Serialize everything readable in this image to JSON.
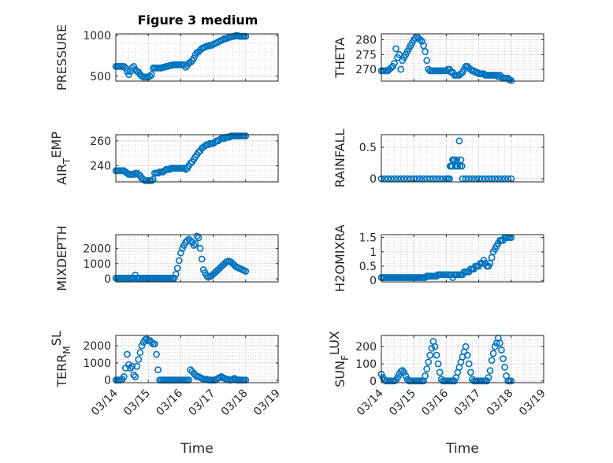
{
  "figure": {
    "title": "Figure 3 medium",
    "x_tick_labels": [
      "03/14",
      "03/15",
      "03/16",
      "03/17",
      "03/18",
      "03/19"
    ],
    "xlabel": "Time"
  },
  "chart_data": [
    {
      "type": "scatter",
      "name": "PRESSURE",
      "ylabel_base": "PRESSURE",
      "ylabel_sub": "",
      "ylabel_sup": "",
      "ylim": [
        440,
        1020
      ],
      "yticks": [
        500,
        1000
      ],
      "xlim": [
        0,
        5
      ],
      "color": "#0072BD",
      "x": [
        0,
        0.05,
        0.1,
        0.15,
        0.2,
        0.25,
        0.3,
        0.35,
        0.4,
        0.45,
        0.5,
        0.55,
        0.6,
        0.65,
        0.7,
        0.75,
        0.8,
        0.85,
        0.9,
        0.95,
        1.0,
        1.05,
        1.1,
        1.15,
        1.2,
        1.25,
        1.3,
        1.35,
        1.4,
        1.45,
        1.5,
        1.55,
        1.6,
        1.65,
        1.7,
        1.75,
        1.8,
        1.85,
        1.9,
        1.95,
        2.0,
        2.05,
        2.1,
        2.15,
        2.2,
        2.25,
        2.3,
        2.35,
        2.4,
        2.45,
        2.5,
        2.55,
        2.6,
        2.65,
        2.7,
        2.75,
        2.8,
        2.85,
        2.9,
        2.95,
        3.0,
        3.05,
        3.1,
        3.15,
        3.2,
        3.25,
        3.3,
        3.35,
        3.4,
        3.45,
        3.5,
        3.55,
        3.6,
        3.65,
        3.7,
        3.75,
        3.8,
        3.85,
        3.9,
        3.95,
        4.0
      ],
      "y": [
        620,
        620,
        620,
        620,
        620,
        620,
        600,
        560,
        520,
        560,
        600,
        620,
        580,
        560,
        550,
        520,
        500,
        490,
        490,
        490,
        490,
        500,
        520,
        600,
        600,
        600,
        600,
        600,
        600,
        610,
        610,
        620,
        620,
        630,
        630,
        640,
        640,
        640,
        640,
        640,
        640,
        640,
        640,
        610,
        630,
        660,
        670,
        690,
        720,
        760,
        790,
        800,
        820,
        840,
        850,
        860,
        870,
        870,
        880,
        880,
        890,
        900,
        910,
        920,
        930,
        940,
        950,
        960,
        960,
        970,
        980,
        980,
        990,
        990,
        1000,
        1000,
        990,
        990,
        990,
        990,
        990
      ],
      "x_tick_labels_ref": true
    },
    {
      "type": "scatter",
      "name": "THETA",
      "ylabel_base": "THETA",
      "ylabel_sub": "",
      "ylabel_sup": "",
      "ylim": [
        266,
        282
      ],
      "yticks": [
        270,
        275,
        280
      ],
      "xlim": [
        0,
        5
      ],
      "color": "#0072BD",
      "x": [
        0,
        0.05,
        0.1,
        0.15,
        0.2,
        0.25,
        0.3,
        0.35,
        0.4,
        0.45,
        0.5,
        0.55,
        0.6,
        0.65,
        0.7,
        0.75,
        0.8,
        0.85,
        0.9,
        0.95,
        1.0,
        1.05,
        1.1,
        1.15,
        1.2,
        1.25,
        1.3,
        1.35,
        1.4,
        1.45,
        1.5,
        1.55,
        1.6,
        1.65,
        1.7,
        1.75,
        1.8,
        1.85,
        1.9,
        1.95,
        2.0,
        2.05,
        2.1,
        2.15,
        2.2,
        2.25,
        2.3,
        2.35,
        2.4,
        2.45,
        2.5,
        2.55,
        2.6,
        2.65,
        2.7,
        2.75,
        2.8,
        2.85,
        2.9,
        2.95,
        3.0,
        3.05,
        3.1,
        3.15,
        3.2,
        3.25,
        3.3,
        3.35,
        3.4,
        3.45,
        3.5,
        3.55,
        3.6,
        3.65,
        3.7,
        3.75,
        3.8,
        3.85,
        3.9,
        3.95,
        4.0
      ],
      "y": [
        269.5,
        269.5,
        269.5,
        269.5,
        269.5,
        270,
        270.5,
        271,
        272,
        277,
        274,
        275,
        270,
        273,
        274,
        275,
        276,
        277,
        278,
        279,
        280,
        280.5,
        281,
        280.5,
        280,
        279.5,
        278,
        276,
        273,
        270,
        269.5,
        269.5,
        269.5,
        269.5,
        269.5,
        269.5,
        269.5,
        269.5,
        269.5,
        269.5,
        269.5,
        270,
        270,
        269,
        269,
        268,
        268,
        268,
        268,
        268.5,
        269,
        270,
        271,
        271,
        270.5,
        270,
        269.5,
        269.5,
        269,
        269,
        268.5,
        268.5,
        268.5,
        268.5,
        268,
        268,
        268,
        268,
        268,
        268,
        268,
        268,
        267.5,
        268,
        267.5,
        267,
        267,
        267,
        267,
        266.5,
        266.2
      ]
    },
    {
      "type": "scatter",
      "name": "AIR_TEMP",
      "ylabel_base": "AIR",
      "ylabel_sub": "T",
      "ylabel_sup": "EMP",
      "ylim": [
        227,
        265
      ],
      "yticks": [
        240,
        260
      ],
      "xlim": [
        0,
        5
      ],
      "color": "#0072BD",
      "x": [
        0,
        0.05,
        0.1,
        0.15,
        0.2,
        0.25,
        0.3,
        0.35,
        0.4,
        0.45,
        0.5,
        0.55,
        0.6,
        0.65,
        0.7,
        0.75,
        0.8,
        0.85,
        0.9,
        0.95,
        1.0,
        1.05,
        1.1,
        1.15,
        1.2,
        1.25,
        1.3,
        1.35,
        1.4,
        1.45,
        1.5,
        1.55,
        1.6,
        1.65,
        1.7,
        1.75,
        1.8,
        1.85,
        1.9,
        1.95,
        2.0,
        2.05,
        2.1,
        2.15,
        2.2,
        2.25,
        2.3,
        2.35,
        2.4,
        2.45,
        2.5,
        2.55,
        2.6,
        2.65,
        2.7,
        2.75,
        2.8,
        2.85,
        2.9,
        2.95,
        3.0,
        3.05,
        3.1,
        3.15,
        3.2,
        3.25,
        3.3,
        3.35,
        3.4,
        3.45,
        3.5,
        3.55,
        3.6,
        3.65,
        3.7,
        3.75,
        3.8,
        3.85,
        3.9,
        3.95,
        4.0
      ],
      "y": [
        236,
        236,
        236,
        236,
        236,
        236,
        235,
        234,
        233,
        233,
        233,
        233,
        234,
        234,
        233,
        232,
        230,
        229,
        228,
        228,
        228,
        228,
        228,
        229,
        234,
        234,
        234,
        235,
        235,
        235,
        236,
        237,
        237,
        237,
        238,
        238,
        238,
        238,
        238,
        238,
        238,
        238,
        238,
        237,
        238,
        240,
        242,
        243,
        245,
        247,
        249,
        251,
        252,
        254,
        255,
        256,
        257,
        257,
        258,
        258,
        258,
        259,
        260,
        260,
        261,
        262,
        262,
        262,
        263,
        263,
        263,
        264,
        264,
        264,
        264,
        264,
        264,
        264,
        264,
        264,
        264
      ]
    },
    {
      "type": "scatter",
      "name": "RAINFALL",
      "ylabel_base": "RAINFALL",
      "ylabel_sub": "",
      "ylabel_sup": "",
      "ylim": [
        -0.05,
        0.7
      ],
      "yticks": [
        0,
        0.5
      ],
      "xlim": [
        0,
        5
      ],
      "color": "#0072BD",
      "x": [
        0,
        0.1,
        0.2,
        0.3,
        0.4,
        0.5,
        0.6,
        0.7,
        0.8,
        0.9,
        1.0,
        1.1,
        1.2,
        1.3,
        1.4,
        1.5,
        1.6,
        1.7,
        1.8,
        1.9,
        2.0,
        2.05,
        2.1,
        2.12,
        2.15,
        2.18,
        2.2,
        2.22,
        2.25,
        2.28,
        2.3,
        2.32,
        2.35,
        2.4,
        2.42,
        2.45,
        2.48,
        2.5,
        2.6,
        2.7,
        2.8,
        2.9,
        3.0,
        3.1,
        3.2,
        3.3,
        3.4,
        3.5,
        3.6,
        3.7,
        3.8,
        3.9,
        4.0
      ],
      "y": [
        0,
        0,
        0,
        0,
        0,
        0,
        0,
        0,
        0,
        0,
        0,
        0,
        0,
        0,
        0,
        0,
        0,
        0,
        0,
        0,
        0,
        0,
        0,
        0.2,
        0.2,
        0.2,
        0.3,
        0.3,
        0.3,
        0.2,
        0.2,
        0.3,
        0.2,
        0.6,
        0.2,
        0.3,
        0.2,
        0,
        0,
        0,
        0,
        0,
        0,
        0,
        0,
        0,
        0,
        0,
        0,
        0,
        0,
        0,
        0
      ]
    },
    {
      "type": "scatter",
      "name": "MIXDEPTH",
      "ylabel_base": "MIXDEPTH",
      "ylabel_sub": "",
      "ylabel_sup": "",
      "ylim": [
        -200,
        2900
      ],
      "yticks": [
        0,
        1000,
        2000
      ],
      "xlim": [
        0,
        5
      ],
      "color": "#0072BD",
      "x": [
        0,
        0.05,
        0.1,
        0.15,
        0.2,
        0.25,
        0.3,
        0.35,
        0.4,
        0.45,
        0.5,
        0.55,
        0.6,
        0.65,
        0.7,
        0.75,
        0.8,
        0.85,
        0.9,
        0.95,
        1.0,
        1.05,
        1.1,
        1.15,
        1.2,
        1.25,
        1.3,
        1.35,
        1.4,
        1.45,
        1.5,
        1.55,
        1.6,
        1.65,
        1.7,
        1.75,
        1.8,
        1.85,
        1.9,
        1.95,
        2.0,
        2.05,
        2.1,
        2.15,
        2.2,
        2.25,
        2.3,
        2.35,
        2.4,
        2.45,
        2.5,
        2.55,
        2.6,
        2.65,
        2.7,
        2.75,
        2.8,
        2.85,
        2.9,
        2.95,
        3.0,
        3.05,
        3.1,
        3.15,
        3.2,
        3.25,
        3.3,
        3.35,
        3.4,
        3.45,
        3.5,
        3.55,
        3.6,
        3.65,
        3.7,
        3.75,
        3.8,
        3.85,
        3.9,
        3.95,
        4.0
      ],
      "y": [
        50,
        50,
        50,
        50,
        50,
        50,
        50,
        50,
        50,
        50,
        50,
        50,
        250,
        50,
        50,
        50,
        50,
        50,
        50,
        50,
        50,
        50,
        50,
        50,
        50,
        50,
        50,
        50,
        50,
        50,
        50,
        50,
        50,
        50,
        50,
        50,
        50,
        300,
        700,
        1200,
        1700,
        2000,
        2200,
        2400,
        2500,
        2600,
        2500,
        2400,
        2200,
        2300,
        2800,
        2700,
        2000,
        1300,
        600,
        400,
        200,
        100,
        150,
        200,
        300,
        400,
        500,
        600,
        700,
        800,
        900,
        1000,
        1100,
        1150,
        1150,
        1100,
        1000,
        900,
        800,
        750,
        700,
        650,
        600,
        550,
        500
      ]
    },
    {
      "type": "scatter",
      "name": "H2OMIXRA",
      "ylabel_base": "H2OMIXRA",
      "ylabel_sub": "",
      "ylabel_sup": "",
      "ylim": [
        -0.05,
        1.6
      ],
      "yticks": [
        0,
        0.5,
        1,
        1.5
      ],
      "xlim": [
        0,
        5
      ],
      "color": "#0072BD",
      "x": [
        0,
        0.05,
        0.1,
        0.15,
        0.2,
        0.25,
        0.3,
        0.35,
        0.4,
        0.45,
        0.5,
        0.55,
        0.6,
        0.65,
        0.7,
        0.75,
        0.8,
        0.85,
        0.9,
        0.95,
        1.0,
        1.05,
        1.1,
        1.15,
        1.2,
        1.25,
        1.3,
        1.35,
        1.4,
        1.45,
        1.5,
        1.55,
        1.6,
        1.65,
        1.7,
        1.75,
        1.8,
        1.85,
        1.9,
        1.95,
        2.0,
        2.05,
        2.1,
        2.15,
        2.2,
        2.25,
        2.3,
        2.35,
        2.4,
        2.45,
        2.5,
        2.55,
        2.6,
        2.65,
        2.7,
        2.75,
        2.8,
        2.85,
        2.9,
        2.95,
        3.0,
        3.05,
        3.1,
        3.15,
        3.2,
        3.25,
        3.3,
        3.35,
        3.4,
        3.45,
        3.5,
        3.55,
        3.6,
        3.65,
        3.7,
        3.75,
        3.8,
        3.85,
        3.9,
        3.95,
        4.0
      ],
      "y": [
        0.1,
        0.1,
        0.1,
        0.1,
        0.1,
        0.1,
        0.1,
        0.1,
        0.1,
        0.1,
        0.1,
        0.1,
        0.1,
        0.1,
        0.1,
        0.1,
        0.1,
        0.1,
        0.1,
        0.1,
        0.1,
        0.1,
        0.1,
        0.1,
        0.1,
        0.1,
        0.1,
        0.1,
        0.15,
        0.15,
        0.15,
        0.15,
        0.15,
        0.15,
        0.15,
        0.2,
        0.2,
        0.2,
        0.2,
        0.2,
        0.2,
        0.2,
        0.2,
        0.2,
        0.1,
        0.2,
        0.2,
        0.2,
        0.2,
        0.2,
        0.2,
        0.3,
        0.3,
        0.3,
        0.3,
        0.4,
        0.4,
        0.4,
        0.5,
        0.5,
        0.5,
        0.6,
        0.6,
        0.7,
        0.6,
        0.5,
        0.5,
        0.6,
        0.8,
        1.0,
        1.1,
        1.2,
        1.3,
        1.4,
        1.4,
        1.4,
        1.5,
        1.5,
        1.5,
        1.5,
        1.5
      ]
    },
    {
      "type": "scatter",
      "name": "TERR_MSL",
      "ylabel_base": "TERR",
      "ylabel_sub": "M",
      "ylabel_sup": "SL",
      "ylim": [
        -150,
        2600
      ],
      "yticks": [
        0,
        1000,
        2000
      ],
      "xlim": [
        0,
        5
      ],
      "color": "#0072BD",
      "x": [
        0,
        0.05,
        0.1,
        0.15,
        0.2,
        0.25,
        0.3,
        0.35,
        0.4,
        0.45,
        0.5,
        0.55,
        0.6,
        0.65,
        0.7,
        0.75,
        0.8,
        0.85,
        0.9,
        0.95,
        1.0,
        1.05,
        1.1,
        1.15,
        1.2,
        1.25,
        1.3,
        1.35,
        1.4,
        1.45,
        1.5,
        1.55,
        1.6,
        1.65,
        1.7,
        1.75,
        1.8,
        1.85,
        1.9,
        1.95,
        2.0,
        2.05,
        2.1,
        2.15,
        2.2,
        2.25,
        2.3,
        2.35,
        2.4,
        2.45,
        2.5,
        2.55,
        2.6,
        2.65,
        2.7,
        2.75,
        2.8,
        2.85,
        2.9,
        2.95,
        3.0,
        3.05,
        3.1,
        3.15,
        3.2,
        3.25,
        3.3,
        3.35,
        3.4,
        3.45,
        3.5,
        3.55,
        3.6,
        3.65,
        3.7,
        3.75,
        3.8,
        3.85,
        3.9,
        3.95,
        4.0
      ],
      "y": [
        0,
        0,
        0,
        0,
        50,
        200,
        700,
        1500,
        900,
        700,
        800,
        300,
        200,
        800,
        1200,
        1600,
        2000,
        2200,
        2350,
        2400,
        2300,
        2300,
        2200,
        2100,
        2100,
        1500,
        600,
        0,
        0,
        0,
        0,
        0,
        0,
        0,
        0,
        0,
        0,
        0,
        0,
        0,
        0,
        0,
        0,
        0,
        0,
        0,
        600,
        500,
        400,
        300,
        200,
        200,
        150,
        100,
        50,
        50,
        50,
        0,
        0,
        0,
        0,
        0,
        50,
        100,
        150,
        200,
        150,
        100,
        50,
        50,
        0,
        0,
        50,
        100,
        50,
        0,
        0,
        0,
        0,
        0,
        0
      ]
    },
    {
      "type": "scatter",
      "name": "SUN_FLUX",
      "ylabel_base": "SUN",
      "ylabel_sub": "F",
      "ylabel_sup": "LUX",
      "ylim": [
        -10,
        265
      ],
      "yticks": [
        0,
        100,
        200
      ],
      "xlim": [
        0,
        5
      ],
      "color": "#0072BD",
      "x": [
        0,
        0.05,
        0.1,
        0.15,
        0.2,
        0.25,
        0.3,
        0.35,
        0.4,
        0.45,
        0.5,
        0.55,
        0.6,
        0.65,
        0.7,
        0.75,
        0.8,
        0.85,
        0.9,
        0.95,
        1.0,
        1.05,
        1.1,
        1.15,
        1.2,
        1.25,
        1.3,
        1.35,
        1.4,
        1.45,
        1.5,
        1.55,
        1.6,
        1.65,
        1.7,
        1.75,
        1.8,
        1.85,
        1.9,
        1.95,
        2.0,
        2.05,
        2.1,
        2.15,
        2.2,
        2.25,
        2.3,
        2.35,
        2.4,
        2.45,
        2.5,
        2.55,
        2.6,
        2.65,
        2.7,
        2.75,
        2.8,
        2.85,
        2.9,
        2.95,
        3.0,
        3.05,
        3.1,
        3.15,
        3.2,
        3.25,
        3.3,
        3.35,
        3.4,
        3.45,
        3.5,
        3.55,
        3.6,
        3.65,
        3.7,
        3.75,
        3.8,
        3.85,
        3.9,
        3.95,
        4.0
      ],
      "y": [
        40,
        20,
        5,
        0,
        0,
        0,
        0,
        0,
        0,
        5,
        20,
        40,
        55,
        60,
        50,
        30,
        10,
        0,
        0,
        0,
        0,
        0,
        0,
        0,
        0,
        0,
        0,
        30,
        70,
        110,
        150,
        190,
        230,
        200,
        150,
        100,
        50,
        10,
        0,
        0,
        0,
        0,
        0,
        0,
        0,
        0,
        20,
        50,
        80,
        110,
        140,
        170,
        200,
        150,
        100,
        50,
        10,
        0,
        0,
        0,
        0,
        0,
        0,
        0,
        0,
        0,
        20,
        60,
        120,
        160,
        200,
        220,
        250,
        220,
        180,
        130,
        80,
        30,
        0,
        0,
        0
      ]
    }
  ]
}
